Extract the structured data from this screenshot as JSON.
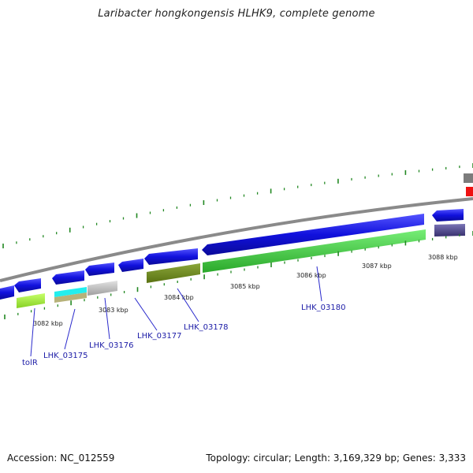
{
  "header": {
    "title": "Laribacter hongkongensis HLHK9, complete genome"
  },
  "footer": {
    "accession": "Accession: NC_012559",
    "summary": "Topology: circular; Length: 3,169,329 bp; Genes: 3,333"
  },
  "map": {
    "kbp_ticks": [
      {
        "label": "3082 kbp"
      },
      {
        "label": "3083 kbp"
      },
      {
        "label": "3084 kbp"
      },
      {
        "label": "3085 kbp"
      },
      {
        "label": "3086 kbp"
      },
      {
        "label": "3087 kbp"
      },
      {
        "label": "3088 kbp"
      }
    ],
    "gene_labels": [
      {
        "text": "tolR"
      },
      {
        "text": "LHK_03175"
      },
      {
        "text": "LHK_03176"
      },
      {
        "text": "LHK_03177"
      },
      {
        "text": "LHK_03178"
      },
      {
        "text": "LHK_03180"
      }
    ],
    "colors": {
      "backbone": "#8a8a8a",
      "cds": "#1111dd",
      "lime": "#a6f03c",
      "cyan": "#22eeee",
      "khaki": "#b7b27a",
      "silver": "#c4c4c4",
      "olive": "#6f8a22",
      "green": "#44d844",
      "slate": "#4a4488",
      "red": "#ee1111",
      "tick": "#228822"
    }
  }
}
